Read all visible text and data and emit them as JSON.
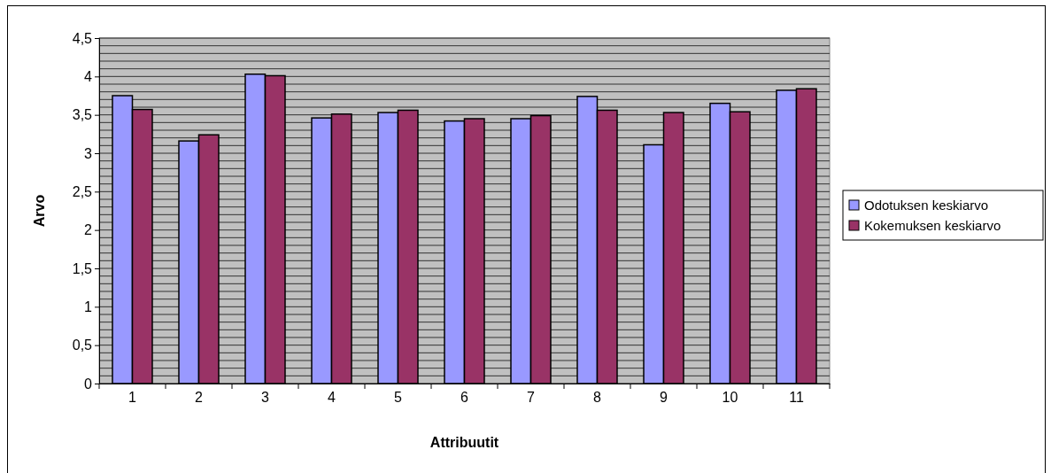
{
  "chart_data": {
    "type": "bar",
    "xlabel": "Attribuutit",
    "ylabel": "Arvo",
    "categories": [
      "1",
      "2",
      "3",
      "4",
      "5",
      "6",
      "7",
      "8",
      "9",
      "10",
      "11"
    ],
    "series": [
      {
        "name": "Odotuksen keskiarvo",
        "color": "#9999ff",
        "values": [
          3.75,
          3.16,
          4.03,
          3.46,
          3.53,
          3.42,
          3.45,
          3.74,
          3.11,
          3.65,
          3.82
        ]
      },
      {
        "name": "Kokemuksen keskiarvo",
        "color": "#993366",
        "values": [
          3.57,
          3.24,
          4.01,
          3.51,
          3.56,
          3.45,
          3.49,
          3.56,
          3.53,
          3.54,
          3.84
        ]
      }
    ],
    "ylim": [
      0,
      4.5
    ],
    "yticks": [
      {
        "value": 0,
        "label": "0"
      },
      {
        "value": 0.1,
        "label": null
      },
      {
        "value": 0.2,
        "label": null
      },
      {
        "value": 0.3,
        "label": null
      },
      {
        "value": 0.4,
        "label": null
      },
      {
        "value": 0.5,
        "label": "0,5"
      },
      {
        "value": 0.6,
        "label": null
      },
      {
        "value": 0.7,
        "label": null
      },
      {
        "value": 0.8,
        "label": null
      },
      {
        "value": 0.9,
        "label": null
      },
      {
        "value": 1,
        "label": "1"
      },
      {
        "value": 1.1,
        "label": null
      },
      {
        "value": 1.2,
        "label": null
      },
      {
        "value": 1.3,
        "label": null
      },
      {
        "value": 1.4,
        "label": null
      },
      {
        "value": 1.5,
        "label": "1,5"
      },
      {
        "value": 1.6,
        "label": null
      },
      {
        "value": 1.7,
        "label": null
      },
      {
        "value": 1.8,
        "label": null
      },
      {
        "value": 1.9,
        "label": null
      },
      {
        "value": 2,
        "label": "2"
      },
      {
        "value": 2.1,
        "label": null
      },
      {
        "value": 2.2,
        "label": null
      },
      {
        "value": 2.3,
        "label": null
      },
      {
        "value": 2.4,
        "label": null
      },
      {
        "value": 2.5,
        "label": "2,5"
      },
      {
        "value": 2.6,
        "label": null
      },
      {
        "value": 2.7,
        "label": null
      },
      {
        "value": 2.8,
        "label": null
      },
      {
        "value": 2.9,
        "label": null
      },
      {
        "value": 3,
        "label": "3"
      },
      {
        "value": 3.1,
        "label": null
      },
      {
        "value": 3.2,
        "label": null
      },
      {
        "value": 3.3,
        "label": null
      },
      {
        "value": 3.4,
        "label": null
      },
      {
        "value": 3.5,
        "label": "3,5"
      },
      {
        "value": 3.6,
        "label": null
      },
      {
        "value": 3.7,
        "label": null
      },
      {
        "value": 3.8,
        "label": null
      },
      {
        "value": 3.9,
        "label": null
      },
      {
        "value": 4,
        "label": "4"
      },
      {
        "value": 4.1,
        "label": null
      },
      {
        "value": 4.2,
        "label": null
      },
      {
        "value": 4.3,
        "label": null
      },
      {
        "value": 4.4,
        "label": null
      },
      {
        "value": 4.5,
        "label": "4,5"
      }
    ],
    "grid": "y",
    "legend": "right"
  }
}
